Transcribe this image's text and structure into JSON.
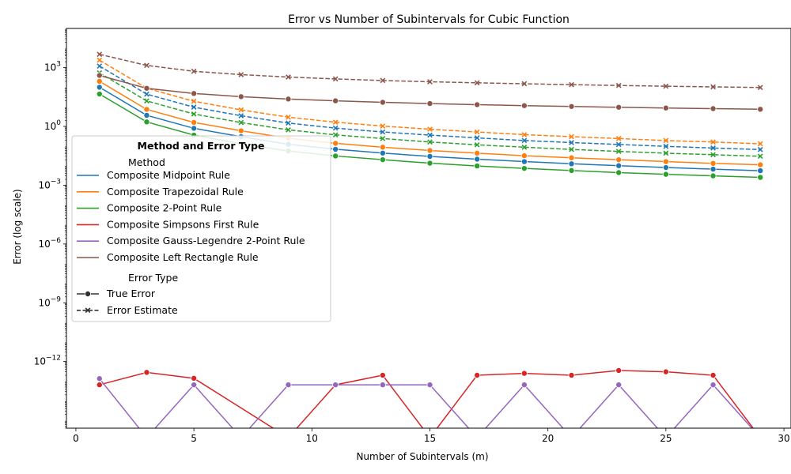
{
  "chart_data": {
    "type": "line",
    "title": "Error vs Number of Subintervals for Cubic Function",
    "xlabel": "Number of Subintervals (m)",
    "ylabel": "Error (log scale)",
    "xlim": [
      -0.4,
      30.3
    ],
    "ylim_log10": [
      -15.4,
      5.0
    ],
    "yscale": "log",
    "xticks": [
      0,
      5,
      10,
      15,
      20,
      25,
      30
    ],
    "xtick_labels": [
      "0",
      "5",
      "10",
      "15",
      "20",
      "25",
      "30"
    ],
    "yticks_log10": [
      3,
      0,
      -3,
      -6,
      -9,
      -12
    ],
    "ytick_labels": [
      "10^3",
      "10^0",
      "10^-3",
      "10^-6",
      "10^-9",
      "10^-12"
    ],
    "grid": false,
    "legend": {
      "placement": "center-left",
      "title": "Method and Error Type",
      "method_header": "Method",
      "error_type_header": "Error Type",
      "error_types": [
        {
          "label": "True Error",
          "style": "solid",
          "marker": "circle"
        },
        {
          "label": "Error Estimate",
          "style": "dashed",
          "marker": "x"
        }
      ]
    },
    "x": [
      1,
      3,
      5,
      7,
      9,
      11,
      13,
      15,
      17,
      19,
      21,
      23,
      25,
      27,
      29
    ],
    "series": [
      {
        "name": "Composite Midpoint Rule",
        "color": "#1f77b4",
        "true_error": [
          100,
          3.7,
          0.8,
          0.3,
          0.123,
          0.0683,
          0.0436,
          0.0296,
          0.0213,
          0.016,
          0.0124,
          0.0099,
          0.008,
          0.0066,
          0.0055
        ],
        "error_estimate": [
          1200,
          44.4,
          9.6,
          3.5,
          1.48,
          0.82,
          0.52,
          0.36,
          0.26,
          0.19,
          0.15,
          0.12,
          0.096,
          0.079,
          0.066
        ]
      },
      {
        "name": "Composite Trapezoidal Rule",
        "color": "#ff7f0e",
        "true_error": [
          200,
          7.4,
          1.6,
          0.6,
          0.25,
          0.137,
          0.087,
          0.059,
          0.043,
          0.032,
          0.025,
          0.02,
          0.016,
          0.013,
          0.011
        ],
        "error_estimate": [
          2400,
          89,
          19.2,
          7,
          2.96,
          1.64,
          1.04,
          0.72,
          0.52,
          0.38,
          0.3,
          0.24,
          0.19,
          0.16,
          0.13
        ]
      },
      {
        "name": "Composite 2-Point Rule",
        "color": "#2ca02c",
        "true_error": [
          45,
          1.7,
          0.36,
          0.13,
          0.056,
          0.031,
          0.02,
          0.0133,
          0.0096,
          0.0072,
          0.0056,
          0.0044,
          0.0036,
          0.003,
          0.0025
        ],
        "error_estimate": [
          540,
          20,
          4.3,
          1.57,
          0.67,
          0.37,
          0.24,
          0.16,
          0.115,
          0.087,
          0.067,
          0.053,
          0.043,
          0.036,
          0.03
        ]
      },
      {
        "name": "Composite Simpsons First Rule",
        "color": "#d62728",
        "true_error_x": [
          1,
          3,
          5,
          11,
          13,
          17,
          19,
          21,
          23,
          25,
          27
        ],
        "true_error": [
          6.5e-14,
          2.8e-13,
          1.4e-13,
          6.5e-14,
          2e-13,
          2e-13,
          2.5e-13,
          2e-13,
          3.5e-13,
          3e-13,
          2e-13
        ],
        "zero_error_x": [
          9,
          15,
          29
        ]
      },
      {
        "name": "Composite Gauss-Legendre 2-Point Rule",
        "color": "#9467bd",
        "true_error_x": [
          1,
          5,
          9,
          11,
          13,
          15,
          19,
          23,
          27
        ],
        "true_error": [
          1.35e-13,
          6.5e-14,
          6.5e-14,
          6.5e-14,
          6.5e-14,
          6.5e-14,
          6.5e-14,
          6.5e-14,
          6.5e-14
        ],
        "zero_error_x": [
          3,
          7,
          17,
          21,
          25,
          29
        ]
      },
      {
        "name": "Composite Left Rectangle Rule",
        "color": "#8c564b",
        "true_error": [
          400,
          88,
          48,
          33,
          25,
          20.3,
          17,
          14.7,
          12.9,
          11.5,
          10.4,
          9.5,
          8.7,
          8.1,
          7.5
        ],
        "error_estimate": [
          4800,
          1300,
          650,
          440,
          330,
          265,
          220,
          190,
          168,
          150,
          135,
          123,
          113,
          104,
          97
        ]
      }
    ]
  }
}
